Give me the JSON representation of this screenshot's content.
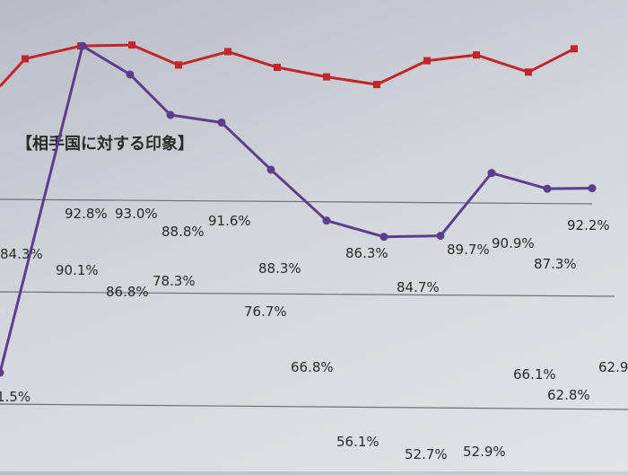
{
  "chart_data": {
    "type": "line",
    "title": "【相手国に対する印象】",
    "grid": true,
    "ylim": [
      45,
      100
    ],
    "x_count": 13,
    "series": [
      {
        "color": "#c0262c",
        "marker": "square",
        "values": [
          84.3,
          90.1,
          92.8,
          93.0,
          88.8,
          91.6,
          88.3,
          86.3,
          84.7,
          89.7,
          90.9,
          87.3,
          92.2
        ],
        "labels": [
          "84.3%",
          "90.1%",
          "92.8%",
          "93.0%",
          "88.8%",
          "91.6%",
          "88.3%",
          "86.3%",
          "84.7%",
          "89.7%",
          "90.9%",
          "87.3%",
          "92.2%"
        ]
      },
      {
        "color": "#5a3f8f",
        "marker": "circle",
        "values": [
          null,
          92.8,
          86.8,
          78.3,
          76.7,
          66.8,
          56.1,
          52.7,
          52.9,
          66.1,
          62.8,
          62.9
        ],
        "labels": [
          "",
          "",
          "86.8%",
          "78.3%",
          "76.7%",
          "66.8%",
          "56.1%",
          "52.7%",
          "52.9%",
          "66.1%",
          "62.8%",
          "62.9"
        ],
        "offscreen_first_label": "1.5%"
      }
    ]
  }
}
